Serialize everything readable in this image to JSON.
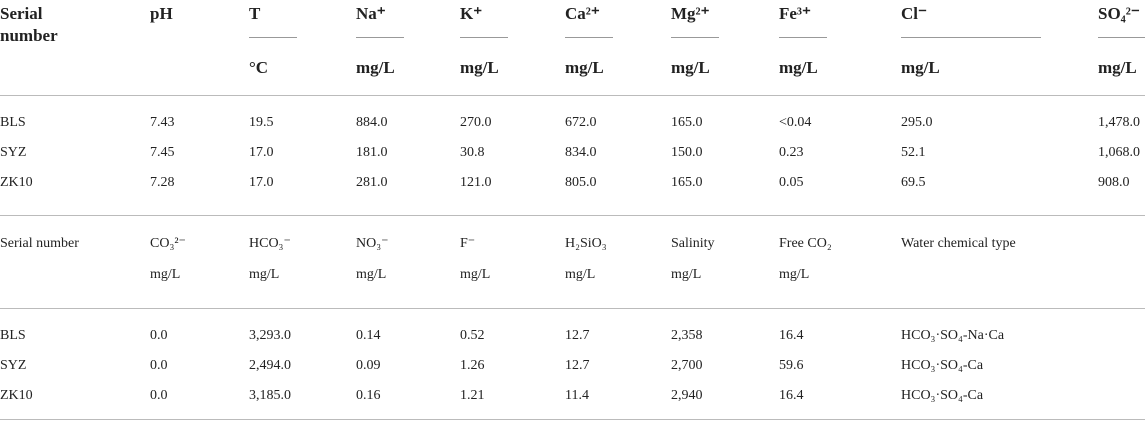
{
  "table": {
    "header1": [
      {
        "name": "Serial number"
      },
      {
        "name": "pH"
      },
      {
        "name": "T",
        "unit": "°C"
      },
      {
        "name": "Na⁺",
        "unit": "mg/L"
      },
      {
        "name": "K⁺",
        "unit": "mg/L"
      },
      {
        "name": "Ca²⁺",
        "unit": "mg/L"
      },
      {
        "name": "Mg²⁺",
        "unit": "mg/L"
      },
      {
        "name": "Fe³⁺",
        "unit": "mg/L"
      },
      {
        "name": "Cl⁻",
        "unit": "mg/L"
      },
      {
        "name": "SO₄²⁻",
        "unit": "mg/L"
      }
    ],
    "rows1": [
      [
        "BLS",
        "7.43",
        "19.5",
        "884.0",
        "270.0",
        "672.0",
        "165.0",
        "<0.04",
        "295.0",
        "1,478.0"
      ],
      [
        "SYZ",
        "7.45",
        "17.0",
        "181.0",
        "30.8",
        "834.0",
        "150.0",
        "0.23",
        "52.1",
        "1,068.0"
      ],
      [
        "ZK10",
        "7.28",
        "17.0",
        "281.0",
        "121.0",
        "805.0",
        "165.0",
        "0.05",
        "69.5",
        "908.0"
      ]
    ],
    "header2": [
      {
        "name": "Serial number"
      },
      {
        "name": "CO₃²⁻",
        "unit": "mg/L"
      },
      {
        "name": "HCO₃⁻",
        "unit": "mg/L"
      },
      {
        "name": "NO₃⁻",
        "unit": "mg/L"
      },
      {
        "name": "F⁻",
        "unit": "mg/L"
      },
      {
        "name": "H₂SiO₃",
        "unit": "mg/L"
      },
      {
        "name": "Salinity",
        "unit": "mg/L"
      },
      {
        "name": "Free CO₂",
        "unit": "mg/L"
      },
      {
        "name": "Water chemical type"
      }
    ],
    "rows2": [
      [
        "BLS",
        "0.0",
        "3,293.0",
        "0.14",
        "0.52",
        "12.7",
        "2,358",
        "16.4",
        "HCO₃·SO₄-Na·Ca"
      ],
      [
        "SYZ",
        "0.0",
        "2,494.0",
        "0.09",
        "1.26",
        "12.7",
        "2,700",
        "59.6",
        "HCO₃·SO₄-Ca"
      ],
      [
        "ZK10",
        "0.0",
        "3,185.0",
        "0.16",
        "1.21",
        "11.4",
        "2,940",
        "16.4",
        "HCO₃·SO₄-Ca"
      ]
    ]
  }
}
